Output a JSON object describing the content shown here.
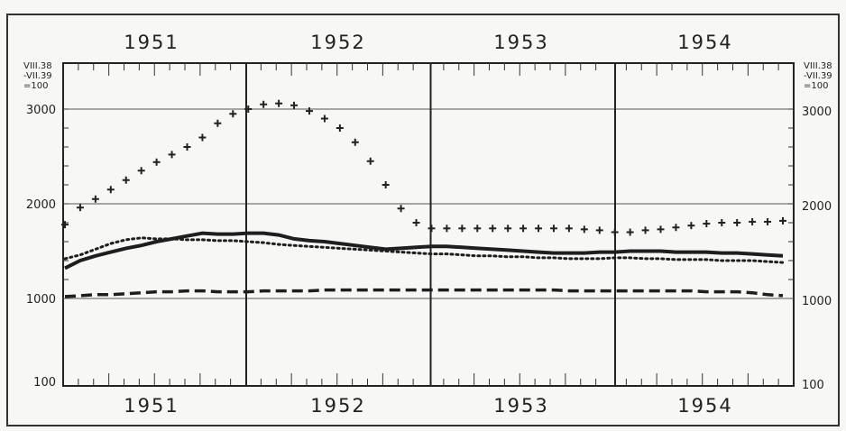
{
  "chart_data": {
    "type": "line",
    "title": "",
    "xlabel": "",
    "ylabel": "",
    "years_top": [
      "1951",
      "1952",
      "1953",
      "1954"
    ],
    "years_bottom": [
      "1951",
      "1952",
      "1953",
      "1954"
    ],
    "base_note_lines": [
      "VIII.38",
      "-VII.39",
      "=100"
    ],
    "y_tick_labels": [
      "100",
      "1000",
      "2000",
      "3000"
    ],
    "y_ticks": [
      100,
      1000,
      2000,
      3000
    ],
    "ylim": [
      100,
      3000
    ],
    "x_months": 48,
    "grid": true,
    "series": [
      {
        "style": "crosses",
        "values": [
          1780,
          1960,
          2050,
          2150,
          2250,
          2350,
          2440,
          2520,
          2600,
          2700,
          2850,
          2950,
          3000,
          3050,
          3060,
          3040,
          2980,
          2900,
          2800,
          2650,
          2450,
          2200,
          1950,
          1800,
          1740,
          1740,
          1740,
          1740,
          1740,
          1740,
          1740,
          1740,
          1740,
          1740,
          1730,
          1720,
          1700,
          1700,
          1720,
          1730,
          1750,
          1770,
          1790,
          1800,
          1800,
          1810,
          1810,
          1820
        ]
      },
      {
        "style": "solid",
        "values": [
          1320,
          1400,
          1450,
          1490,
          1530,
          1560,
          1600,
          1630,
          1660,
          1690,
          1680,
          1680,
          1690,
          1690,
          1670,
          1630,
          1610,
          1600,
          1580,
          1560,
          1540,
          1520,
          1530,
          1540,
          1550,
          1550,
          1540,
          1530,
          1520,
          1510,
          1500,
          1490,
          1480,
          1480,
          1480,
          1490,
          1490,
          1500,
          1500,
          1500,
          1490,
          1490,
          1490,
          1480,
          1480,
          1470,
          1460,
          1450
        ]
      },
      {
        "style": "dotted",
        "values": [
          1420,
          1460,
          1520,
          1580,
          1620,
          1640,
          1630,
          1630,
          1620,
          1620,
          1610,
          1610,
          1600,
          1590,
          1570,
          1560,
          1550,
          1540,
          1530,
          1520,
          1510,
          1500,
          1490,
          1480,
          1470,
          1470,
          1460,
          1450,
          1450,
          1440,
          1440,
          1430,
          1430,
          1420,
          1420,
          1420,
          1430,
          1430,
          1420,
          1420,
          1410,
          1410,
          1410,
          1400,
          1400,
          1400,
          1390,
          1380
        ]
      },
      {
        "style": "dashed",
        "values": [
          1020,
          1030,
          1040,
          1040,
          1050,
          1060,
          1070,
          1070,
          1080,
          1080,
          1070,
          1070,
          1070,
          1080,
          1080,
          1080,
          1080,
          1090,
          1090,
          1090,
          1090,
          1090,
          1090,
          1090,
          1090,
          1090,
          1090,
          1090,
          1090,
          1090,
          1090,
          1090,
          1090,
          1080,
          1080,
          1080,
          1080,
          1080,
          1080,
          1080,
          1080,
          1080,
          1070,
          1070,
          1070,
          1060,
          1040,
          1030
        ]
      }
    ]
  }
}
